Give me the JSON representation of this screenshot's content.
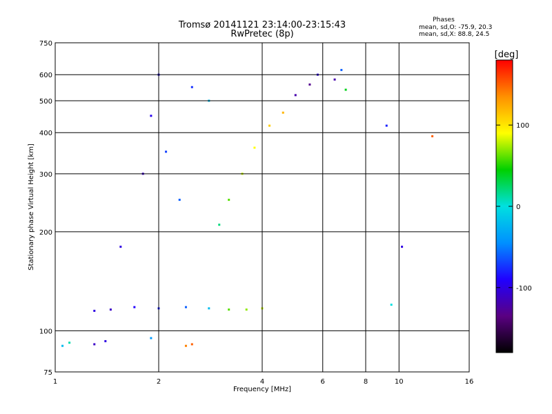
{
  "chart_data": {
    "type": "scatter",
    "title": "Tromsø 20141121 23:14:00-23:15:43",
    "subtitle": "RwPretec (8p)",
    "xlabel": "Frequency [MHz]",
    "ylabel": "Stationary phase Virtual Height [km]",
    "xscale": "log",
    "yscale": "log",
    "xlim": [
      1,
      16
    ],
    "ylim": [
      75,
      750
    ],
    "x_ticks": [
      1,
      2,
      4,
      6,
      8,
      10,
      16
    ],
    "y_ticks": [
      75,
      100,
      200,
      300,
      400,
      500,
      600,
      750
    ],
    "grid": true,
    "stats": {
      "heading": "Phases",
      "line1": "mean, sd,O: -75.9, 20.3",
      "line2": "mean, sd,X: 88.8, 24.5"
    },
    "colorbar": {
      "label": "[deg]",
      "ticks": [
        100,
        0,
        -100
      ],
      "range": [
        -180,
        180
      ],
      "colormap": [
        "#000000",
        "#5a0082",
        "#2000ff",
        "#0090ff",
        "#00e0e0",
        "#00d000",
        "#ffff00",
        "#ff9000",
        "#ff0000"
      ]
    },
    "series": [
      {
        "x": [
          1.05,
          1.1,
          1.3,
          1.4,
          1.9,
          2.4,
          2.5
        ],
        "y": [
          90,
          92,
          91,
          93,
          95,
          90,
          91
        ],
        "phase": [
          -20,
          10,
          -110,
          -100,
          -40,
          140,
          150
        ]
      },
      {
        "x": [
          1.3,
          1.45,
          1.7,
          2.0,
          2.4,
          2.8,
          3.2,
          3.6,
          4.0
        ],
        "y": [
          115,
          116,
          118,
          117,
          118,
          117,
          116,
          116,
          117
        ],
        "phase": [
          -100,
          -110,
          -90,
          -80,
          -60,
          -20,
          60,
          70,
          80
        ]
      },
      {
        "x": [
          1.55,
          1.8,
          1.9,
          2.0,
          2.1,
          2.3,
          2.5,
          2.8
        ],
        "y": [
          180,
          300,
          450,
          600,
          350,
          250,
          550,
          500
        ],
        "phase": [
          -100,
          -110,
          -95,
          -90,
          -70,
          -60,
          -75,
          -20
        ]
      },
      {
        "x": [
          3.0,
          3.2,
          3.5,
          3.8,
          4.2,
          4.6,
          5.0,
          5.5,
          5.8
        ],
        "y": [
          210,
          250,
          300,
          360,
          420,
          460,
          520,
          560,
          600
        ],
        "phase": [
          20,
          60,
          80,
          90,
          110,
          120,
          -120,
          -130,
          -100
        ]
      },
      {
        "x": [
          6.5,
          6.8,
          7.0,
          9.2,
          9.5,
          10.2,
          12.5
        ],
        "y": [
          580,
          620,
          540,
          420,
          120,
          180,
          390
        ],
        "phase": [
          -120,
          -60,
          40,
          -80,
          0,
          -100,
          150
        ]
      }
    ]
  }
}
